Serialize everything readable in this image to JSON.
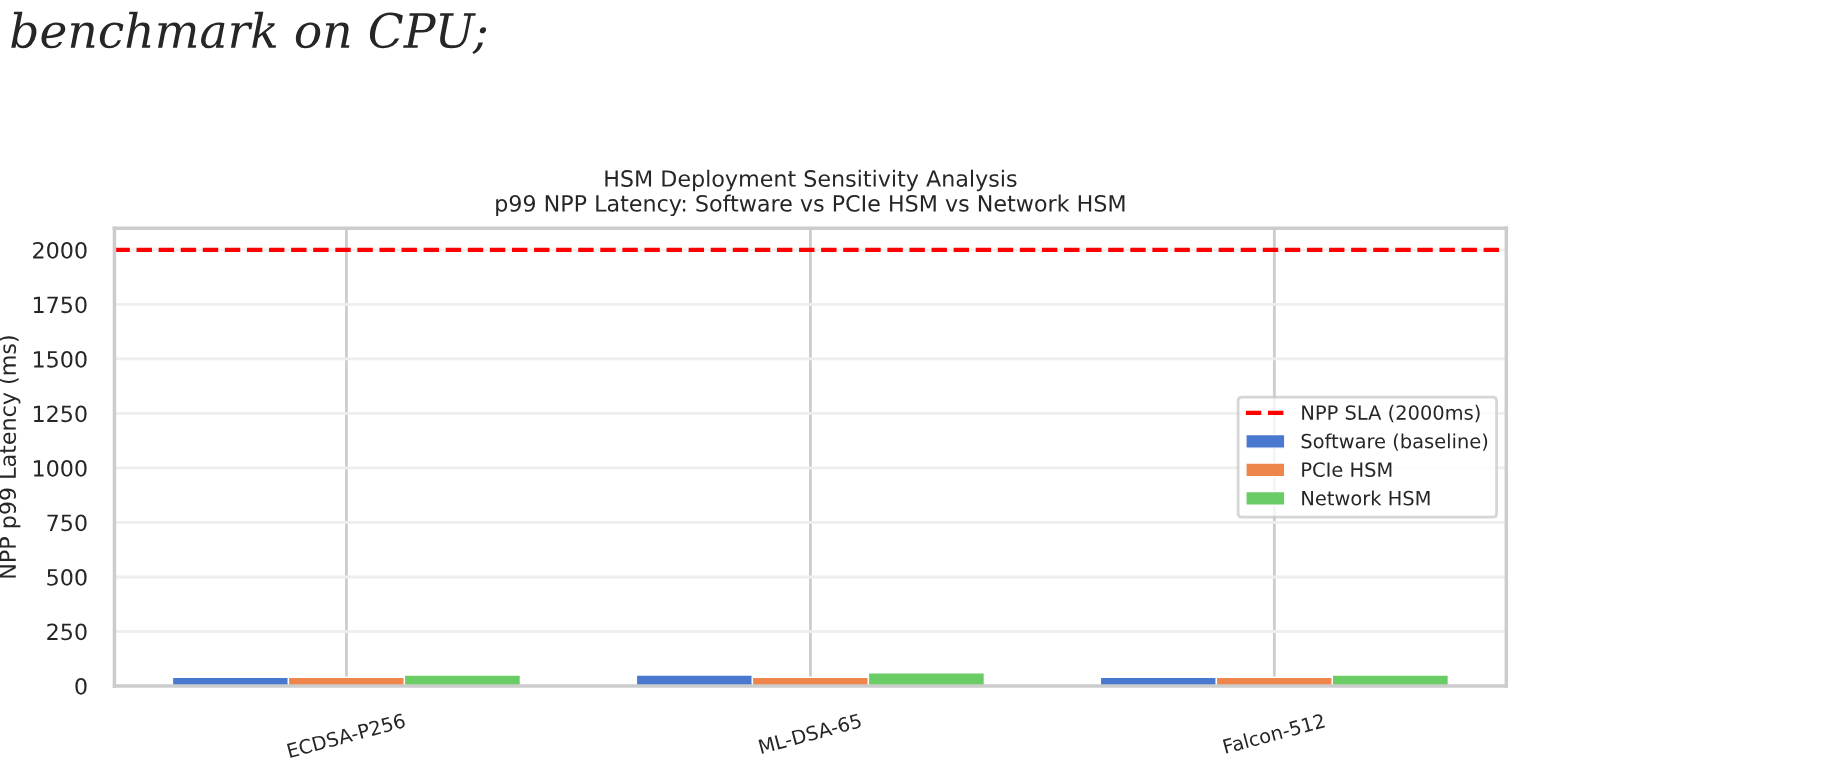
{
  "chart_data": {
    "type": "bar",
    "title": "HSM Deployment Sensitivity Analysis\np99 NPP Latency: Software vs PCIe HSM vs Network HSM",
    "ylabel": "NPP p99 Latency (ms)",
    "annotations": [
      "benchmark on CPU;"
    ],
    "categories": [
      "ECDSA-P256",
      "ML-DSA-65",
      "Falcon-512"
    ],
    "series": [
      {
        "name": "Software (baseline)",
        "color": "#4878d0",
        "values": [
          40,
          50,
          40
        ]
      },
      {
        "name": "PCIe HSM",
        "color": "#ee854a",
        "values": [
          40,
          40,
          40
        ]
      },
      {
        "name": "Network HSM",
        "color": "#6acc64",
        "values": [
          50,
          60,
          50
        ]
      }
    ],
    "ref_lines": [
      {
        "axis": "y",
        "value": 2000,
        "label": "NPP SLA (2000ms)",
        "color": "#ff0000",
        "line_style": "dashed"
      }
    ],
    "ylim": [
      0,
      2100
    ],
    "yticks": [
      0,
      250,
      500,
      750,
      1000,
      1250,
      1500,
      1750,
      2000
    ],
    "grid": true,
    "legend": "center right"
  }
}
